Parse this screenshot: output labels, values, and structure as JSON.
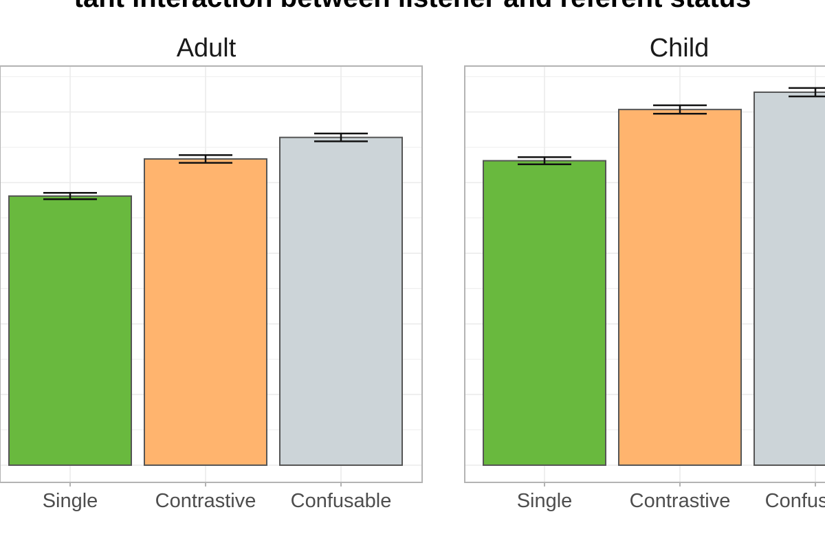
{
  "figure_title_fragment": "tant interaction between listener and referent status",
  "colors": {
    "Single": "#66b83a",
    "Contrastive": "#ffb36b",
    "Confusable": "#cbd3d7",
    "panel_border": "#b3b3b3",
    "grid": "#ebebeb"
  },
  "chart_data": [
    {
      "type": "bar",
      "title": "Adult",
      "categories": [
        "Single",
        "Contrastive",
        "Confusable"
      ],
      "values": [
        0.762,
        0.867,
        0.928
      ],
      "error": [
        0.009,
        0.011,
        0.011
      ],
      "ylim": [
        0,
        1.13
      ],
      "grid": true,
      "xlabel": "",
      "ylabel": ""
    },
    {
      "type": "bar",
      "title": "Child",
      "categories": [
        "Single",
        "Contrastive",
        "Confusable"
      ],
      "values": [
        0.862,
        1.007,
        1.056
      ],
      "error": [
        0.01,
        0.012,
        0.012
      ],
      "ylim": [
        0,
        1.13
      ],
      "grid": true,
      "xlabel": "",
      "ylabel": ""
    }
  ]
}
